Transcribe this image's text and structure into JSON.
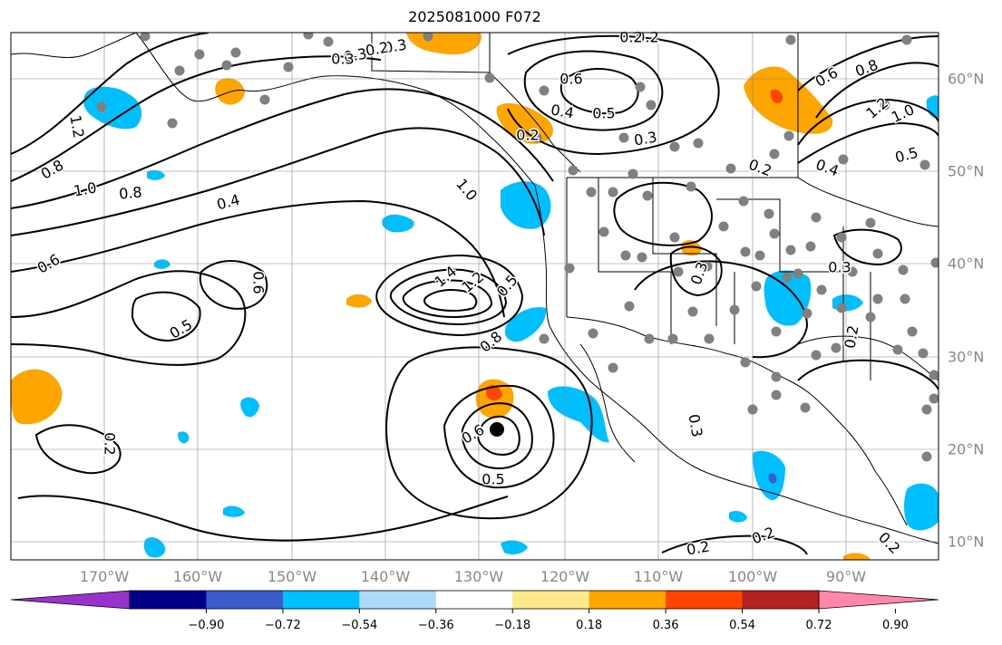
{
  "title": "2025081000 F072",
  "lon_labels": [
    "170°W",
    "160°W",
    "150°W",
    "140°W",
    "130°W",
    "120°W",
    "110°W",
    "100°W",
    "90°W"
  ],
  "lat_labels": [
    "60°N",
    "50°N",
    "40°N",
    "30°N",
    "20°N",
    "10°N"
  ],
  "contour_labels": [
    "0.2",
    "0.3",
    "0.2",
    "0.6",
    "0.4",
    "0.5",
    "0.3",
    "0.2",
    "0.2",
    "0.6",
    "0.8",
    "1.2",
    "1.0",
    "0.5",
    "0.2",
    "0.4",
    "0.3",
    "0.2",
    "0.3",
    "0.3",
    "0.3",
    "1.2",
    "0.8",
    "1.0",
    "0.8",
    "0.4",
    "0.6",
    "0.6",
    "0.5",
    "0.8",
    "1.0",
    "1.4",
    "1.2",
    "0.5",
    "0.2",
    "0.6",
    "0.5",
    "0.3",
    "0.2",
    "0.2",
    "0.2"
  ],
  "colorbar": {
    "ticks": [
      "−0.90",
      "−0.72",
      "−0.54",
      "−0.36",
      "−0.18",
      "0.18",
      "0.36",
      "0.54",
      "0.72",
      "0.90"
    ],
    "colors": [
      "#9932cc",
      "#00008b",
      "#3a5bcc",
      "#00bfff",
      "#add8f6",
      "#ffffff",
      "#fde88a",
      "#ffa500",
      "#ff4500",
      "#b22222",
      "#ff88aa"
    ]
  },
  "colors": {
    "shade_pos_1": "#ffa500",
    "shade_pos_2": "#ff4500",
    "shade_neg_1": "#00bfff",
    "shade_neg_2": "#3a5bcc",
    "station_dots": "#808080",
    "contours": "#000000"
  }
}
